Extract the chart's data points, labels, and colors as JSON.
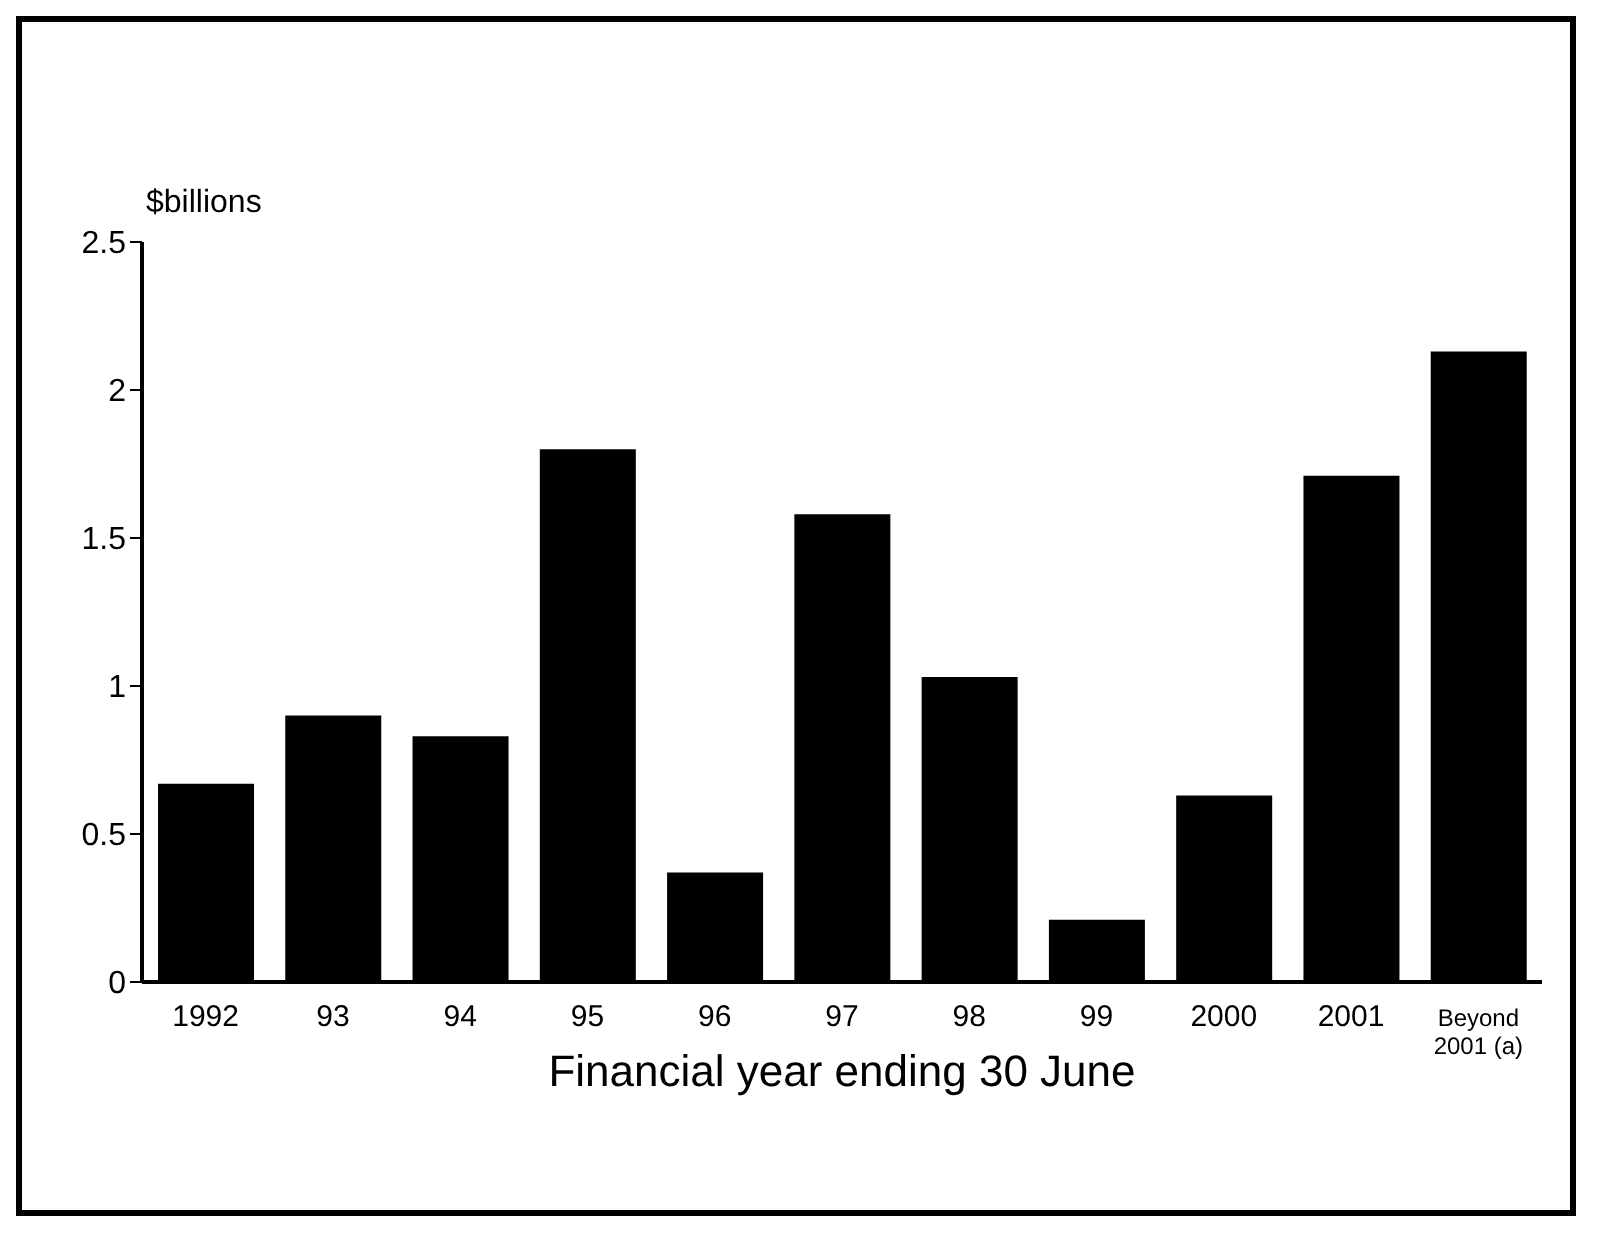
{
  "chart_data": {
    "type": "bar",
    "ylabel": "$billions",
    "xlabel": "Financial year ending 30 June",
    "categories": [
      "1992",
      "93",
      "94",
      "95",
      "96",
      "97",
      "98",
      "99",
      "2000",
      "2001",
      "Beyond 2001 (a)"
    ],
    "values": [
      0.67,
      0.9,
      0.83,
      1.8,
      0.37,
      1.58,
      1.03,
      0.21,
      0.63,
      1.71,
      2.13
    ],
    "color": "#000000",
    "ylim": [
      0,
      2.5
    ],
    "yticks": [
      0,
      0.5,
      1,
      1.5,
      2,
      2.5
    ],
    "grid": false
  }
}
